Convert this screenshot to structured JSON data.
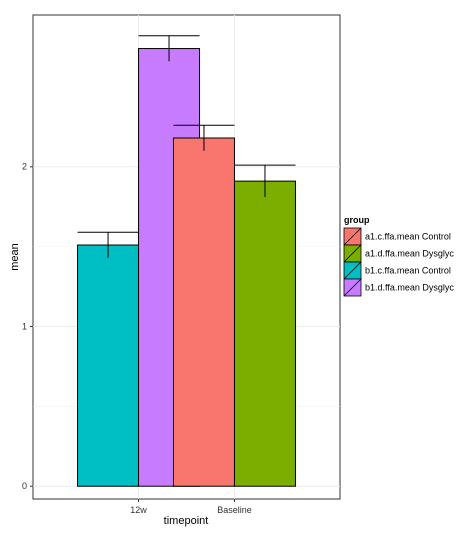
{
  "chart_data": {
    "type": "bar",
    "title": "",
    "xlabel": "timepoint",
    "ylabel": "mean",
    "ylim": [
      -0.08,
      2.95
    ],
    "yticks": [
      0,
      1,
      2
    ],
    "grid": true,
    "legend_title": "group",
    "legend_position": "right",
    "categories": [
      "12w",
      "Baseline"
    ],
    "bars": [
      {
        "category": "12w",
        "group": "b1.c.ffa.mean Control",
        "value": 1.51,
        "error": 0.08
      },
      {
        "category": "12w",
        "group": "b1.d.ffa.mean Dysglyc",
        "value": 2.74,
        "error": 0.08
      },
      {
        "category": "Baseline",
        "group": "a1.c.ffa.mean Control",
        "value": 2.18,
        "error": 0.08
      },
      {
        "category": "Baseline",
        "group": "a1.d.ffa.mean Dysglyc",
        "value": 1.91,
        "error": 0.1
      }
    ],
    "series": [
      {
        "name": "a1.c.ffa.mean Control",
        "color": "#F8766D"
      },
      {
        "name": "a1.d.ffa.mean Dysglyc",
        "color": "#7CAE00"
      },
      {
        "name": "b1.c.ffa.mean Control",
        "color": "#00BFC4"
      },
      {
        "name": "b1.d.ffa.mean Dysglyc",
        "color": "#C77CFF"
      }
    ]
  }
}
